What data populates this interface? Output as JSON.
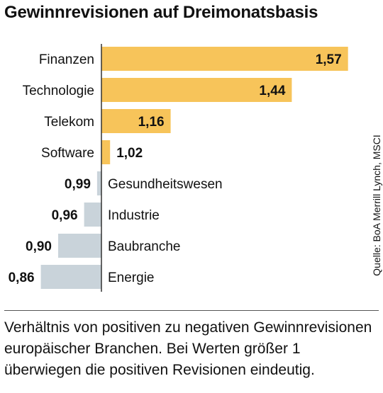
{
  "chart_data": {
    "type": "bar",
    "orientation": "horizontal",
    "title": "Gewinnrevisionen auf Dreimonatsbasis",
    "categories": [
      "Finanzen",
      "Technologie",
      "Telekom",
      "Software",
      "Gesundheitswesen",
      "Industrie",
      "Baubranche",
      "Energie"
    ],
    "values": [
      1.57,
      1.44,
      1.16,
      1.02,
      0.99,
      0.96,
      0.9,
      0.86
    ],
    "value_labels": [
      "1,57",
      "1,44",
      "1,16",
      "1,02",
      "0,99",
      "0,96",
      "0,90",
      "0,86"
    ],
    "baseline": 1,
    "colors": {
      "above": "#f7c45a",
      "below": "#c9d3da",
      "axis": "#333333"
    },
    "source": "Quelle: BoA Merrill Lynch, MSCI",
    "caption": "Verhältnis von positiven zu negativen Gewinnrevisionen europäischer Branchen. Bei Werten größer 1 überwiegen die positiven Revisionen eindeutig."
  }
}
